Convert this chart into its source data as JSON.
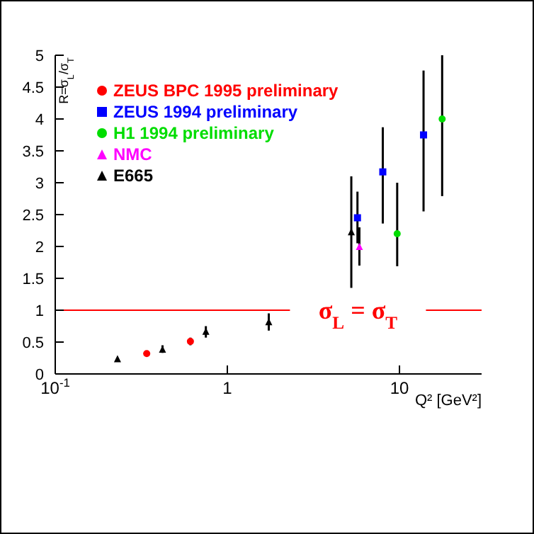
{
  "chart_data": {
    "type": "scatter",
    "xlabel": "Q² [GeV²]",
    "ylabel": "R=σ$_{L}$/σ$_{T}$",
    "log": "x",
    "xlim": [
      0.1,
      30
    ],
    "xticks": [
      {
        "value": 0.1,
        "label": "10$^{-1}$"
      },
      1,
      10
    ],
    "ylim": [
      0,
      5
    ],
    "yticks": [
      0,
      0.5,
      1,
      1.5,
      2,
      2.5,
      3,
      3.5,
      4,
      4.5,
      5
    ],
    "grid": false,
    "legend": "top left",
    "series": [
      {
        "name": "ZEUS BPC 1995 preliminary",
        "color": "#ff0000",
        "marker": "circle",
        "x": [
          0.34,
          0.61
        ],
        "values": [
          0.32,
          0.51
        ],
        "errors": [
          null,
          [
            0.45,
            0.57
          ]
        ]
      },
      {
        "name": "ZEUS 1994 preliminary",
        "color": "#0000ff",
        "marker": "square",
        "x": [
          5.7,
          8.0,
          13.8
        ],
        "values": [
          2.45,
          3.17,
          3.75
        ],
        "errors": [
          [
            2.05,
            2.86
          ],
          [
            2.36,
            3.87
          ],
          [
            2.55,
            4.76
          ]
        ]
      },
      {
        "name": "H1 1994 preliminary",
        "color": "#00dd00",
        "marker": "circle",
        "x": [
          9.7,
          17.7
        ],
        "values": [
          2.2,
          4.0
        ],
        "errors": [
          [
            1.69,
            3.0
          ],
          [
            2.79,
            5
          ]
        ]
      },
      {
        "name": "NMC",
        "color": "#ff00ff",
        "marker": "triangle",
        "x": [
          5.85
        ],
        "values": [
          2.0
        ],
        "errors": [
          [
            1.7,
            2.3
          ]
        ]
      },
      {
        "name": "E665",
        "color": "#000000",
        "marker": "triangle",
        "x": [
          0.23,
          0.42,
          0.75,
          1.74,
          5.25
        ],
        "values": [
          0.24,
          0.39,
          0.67,
          0.82,
          2.23
        ],
        "errors": [
          null,
          [
            0.33,
            0.45
          ],
          [
            0.57,
            0.75
          ],
          [
            0.68,
            0.95
          ],
          [
            1.35,
            3.1
          ]
        ]
      }
    ],
    "ref_lines": [
      {
        "axis": "y",
        "value": 1,
        "label": "σ$_{L}$ = σ$_{T}$",
        "color": "#ff0000"
      }
    ]
  }
}
